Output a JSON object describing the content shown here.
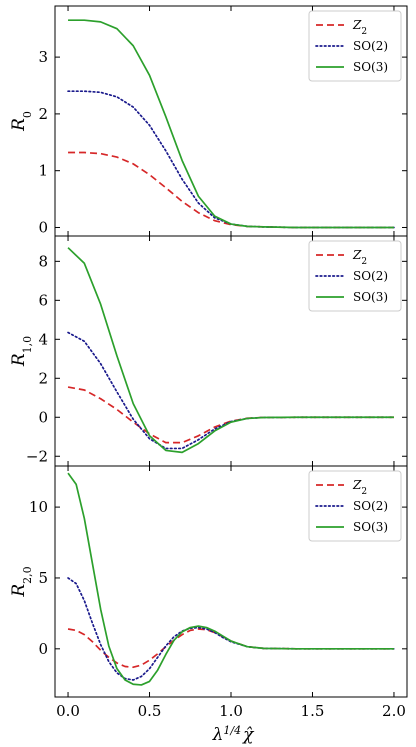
{
  "chart_data": [
    {
      "type": "line",
      "ylabel": "R_0",
      "ylabel_main": "R",
      "ylabel_sub": "0",
      "xlim": [
        -0.08,
        2.08
      ],
      "ylim": [
        -0.15,
        3.9
      ],
      "yticks": [
        0,
        1,
        2,
        3
      ],
      "ytick_labels": [
        "0",
        "1",
        "2",
        "3"
      ],
      "legend_position": "top-right",
      "series": [
        {
          "name": "Z2",
          "label_main": "Z",
          "label_sub": "2",
          "color": "#d62728",
          "style": "dashed",
          "x": [
            0,
            0.1,
            0.2,
            0.3,
            0.4,
            0.5,
            0.6,
            0.7,
            0.8,
            0.9,
            1.0,
            1.1,
            1.2,
            1.4,
            1.6,
            1.8,
            2.0
          ],
          "values": [
            1.32,
            1.32,
            1.3,
            1.24,
            1.12,
            0.93,
            0.7,
            0.46,
            0.26,
            0.12,
            0.05,
            0.02,
            0.01,
            0,
            0,
            0,
            0
          ]
        },
        {
          "name": "SO(2)",
          "label_main": "SO(2)",
          "label_sub": "",
          "color": "#1a1a8c",
          "style": "dotted",
          "x": [
            0,
            0.1,
            0.2,
            0.3,
            0.4,
            0.5,
            0.6,
            0.7,
            0.8,
            0.9,
            1.0,
            1.1,
            1.2,
            1.4,
            1.6,
            1.8,
            2.0
          ],
          "values": [
            2.4,
            2.4,
            2.38,
            2.3,
            2.12,
            1.8,
            1.35,
            0.85,
            0.43,
            0.17,
            0.06,
            0.02,
            0.01,
            0,
            0,
            0,
            0
          ]
        },
        {
          "name": "SO(3)",
          "label_main": "SO(3)",
          "label_sub": "",
          "color": "#2ca02c",
          "style": "solid",
          "x": [
            0,
            0.1,
            0.2,
            0.3,
            0.4,
            0.5,
            0.6,
            0.7,
            0.8,
            0.9,
            1.0,
            1.1,
            1.2,
            1.4,
            1.6,
            1.8,
            2.0
          ],
          "values": [
            3.65,
            3.65,
            3.62,
            3.5,
            3.2,
            2.68,
            1.95,
            1.18,
            0.55,
            0.2,
            0.06,
            0.02,
            0.01,
            0,
            0,
            0,
            0
          ]
        }
      ]
    },
    {
      "type": "line",
      "ylabel": "R_1,0",
      "ylabel_main": "R",
      "ylabel_sub": "1,0",
      "xlim": [
        -0.08,
        2.08
      ],
      "ylim": [
        -2.5,
        9.3
      ],
      "yticks": [
        -2,
        0,
        2,
        4,
        6,
        8
      ],
      "ytick_labels": [
        "−2",
        "0",
        "2",
        "4",
        "6",
        "8"
      ],
      "legend_position": "top-right",
      "series": [
        {
          "name": "Z2",
          "label_main": "Z",
          "label_sub": "2",
          "color": "#d62728",
          "style": "dashed",
          "x": [
            0,
            0.1,
            0.2,
            0.3,
            0.4,
            0.5,
            0.6,
            0.7,
            0.8,
            0.9,
            1.0,
            1.1,
            1.2,
            1.4,
            1.6,
            1.8,
            2.0
          ],
          "values": [
            1.55,
            1.4,
            0.95,
            0.4,
            -0.25,
            -0.85,
            -1.3,
            -1.3,
            -0.95,
            -0.5,
            -0.2,
            -0.05,
            -0.01,
            0,
            0,
            0,
            0
          ]
        },
        {
          "name": "SO(2)",
          "label_main": "SO(2)",
          "label_sub": "",
          "color": "#1a1a8c",
          "style": "dotted",
          "x": [
            0,
            0.1,
            0.2,
            0.3,
            0.4,
            0.5,
            0.6,
            0.7,
            0.8,
            0.9,
            1.0,
            1.1,
            1.2,
            1.4,
            1.6,
            1.8,
            2.0
          ],
          "values": [
            4.35,
            3.9,
            2.75,
            1.3,
            -0.1,
            -1.1,
            -1.6,
            -1.6,
            -1.15,
            -0.6,
            -0.22,
            -0.06,
            -0.01,
            0,
            0,
            0,
            0
          ]
        },
        {
          "name": "SO(3)",
          "label_main": "SO(3)",
          "label_sub": "",
          "color": "#2ca02c",
          "style": "solid",
          "x": [
            0,
            0.1,
            0.2,
            0.3,
            0.4,
            0.5,
            0.6,
            0.7,
            0.8,
            0.9,
            1.0,
            1.1,
            1.2,
            1.4,
            1.6,
            1.8,
            2.0
          ],
          "values": [
            8.7,
            7.9,
            5.8,
            3.15,
            0.7,
            -0.95,
            -1.7,
            -1.8,
            -1.35,
            -0.7,
            -0.25,
            -0.06,
            -0.01,
            0,
            0,
            0,
            0
          ]
        }
      ]
    },
    {
      "type": "line",
      "ylabel": "R_2,0",
      "ylabel_main": "R",
      "ylabel_sub": "2,0",
      "xlabel": "λ^{1/4} χ̂",
      "xlim": [
        -0.08,
        2.08
      ],
      "ylim": [
        -3.4,
        12.9
      ],
      "xticks": [
        0,
        0.5,
        1,
        1.5,
        2
      ],
      "xtick_labels": [
        "0.0",
        "0.5",
        "1.0",
        "1.5",
        "2.0"
      ],
      "yticks": [
        0,
        5,
        10
      ],
      "ytick_labels": [
        "0",
        "5",
        "10"
      ],
      "legend_position": "top-right",
      "series": [
        {
          "name": "Z2",
          "label_main": "Z",
          "label_sub": "2",
          "color": "#d62728",
          "style": "dashed",
          "x": [
            0,
            0.05,
            0.1,
            0.15,
            0.2,
            0.25,
            0.3,
            0.35,
            0.4,
            0.45,
            0.5,
            0.55,
            0.6,
            0.65,
            0.7,
            0.75,
            0.8,
            0.85,
            0.9,
            0.95,
            1.0,
            1.1,
            1.2,
            1.4,
            1.6,
            1.8,
            2.0
          ],
          "values": [
            1.4,
            1.3,
            1.0,
            0.5,
            -0.1,
            -0.6,
            -1.0,
            -1.25,
            -1.3,
            -1.15,
            -0.8,
            -0.35,
            0.15,
            0.6,
            1.0,
            1.3,
            1.4,
            1.35,
            1.15,
            0.85,
            0.55,
            0.15,
            0.03,
            0,
            0,
            0,
            0
          ]
        },
        {
          "name": "SO(2)",
          "label_main": "SO(2)",
          "label_sub": "",
          "color": "#1a1a8c",
          "style": "dotted",
          "x": [
            0,
            0.05,
            0.1,
            0.15,
            0.2,
            0.25,
            0.3,
            0.35,
            0.4,
            0.45,
            0.5,
            0.55,
            0.6,
            0.65,
            0.7,
            0.75,
            0.8,
            0.85,
            0.9,
            0.95,
            1.0,
            1.1,
            1.2,
            1.4,
            1.6,
            1.8,
            2.0
          ],
          "values": [
            5.0,
            4.6,
            3.4,
            1.8,
            0.3,
            -0.9,
            -1.7,
            -2.1,
            -2.2,
            -1.95,
            -1.4,
            -0.6,
            0.2,
            0.85,
            1.25,
            1.45,
            1.5,
            1.4,
            1.15,
            0.8,
            0.5,
            0.15,
            0.03,
            0,
            0,
            0,
            0
          ]
        },
        {
          "name": "SO(3)",
          "label_main": "SO(3)",
          "label_sub": "",
          "color": "#2ca02c",
          "style": "solid",
          "x": [
            0,
            0.05,
            0.1,
            0.15,
            0.2,
            0.25,
            0.3,
            0.35,
            0.4,
            0.45,
            0.5,
            0.55,
            0.6,
            0.65,
            0.7,
            0.75,
            0.8,
            0.85,
            0.9,
            0.95,
            1.0,
            1.1,
            1.2,
            1.4,
            1.6,
            1.8,
            2.0
          ],
          "values": [
            12.4,
            11.6,
            9.2,
            6.0,
            2.8,
            0.2,
            -1.4,
            -2.2,
            -2.5,
            -2.55,
            -2.3,
            -1.5,
            -0.4,
            0.6,
            1.2,
            1.5,
            1.6,
            1.5,
            1.25,
            0.9,
            0.55,
            0.15,
            0.03,
            0,
            0,
            0,
            0
          ]
        }
      ]
    }
  ]
}
